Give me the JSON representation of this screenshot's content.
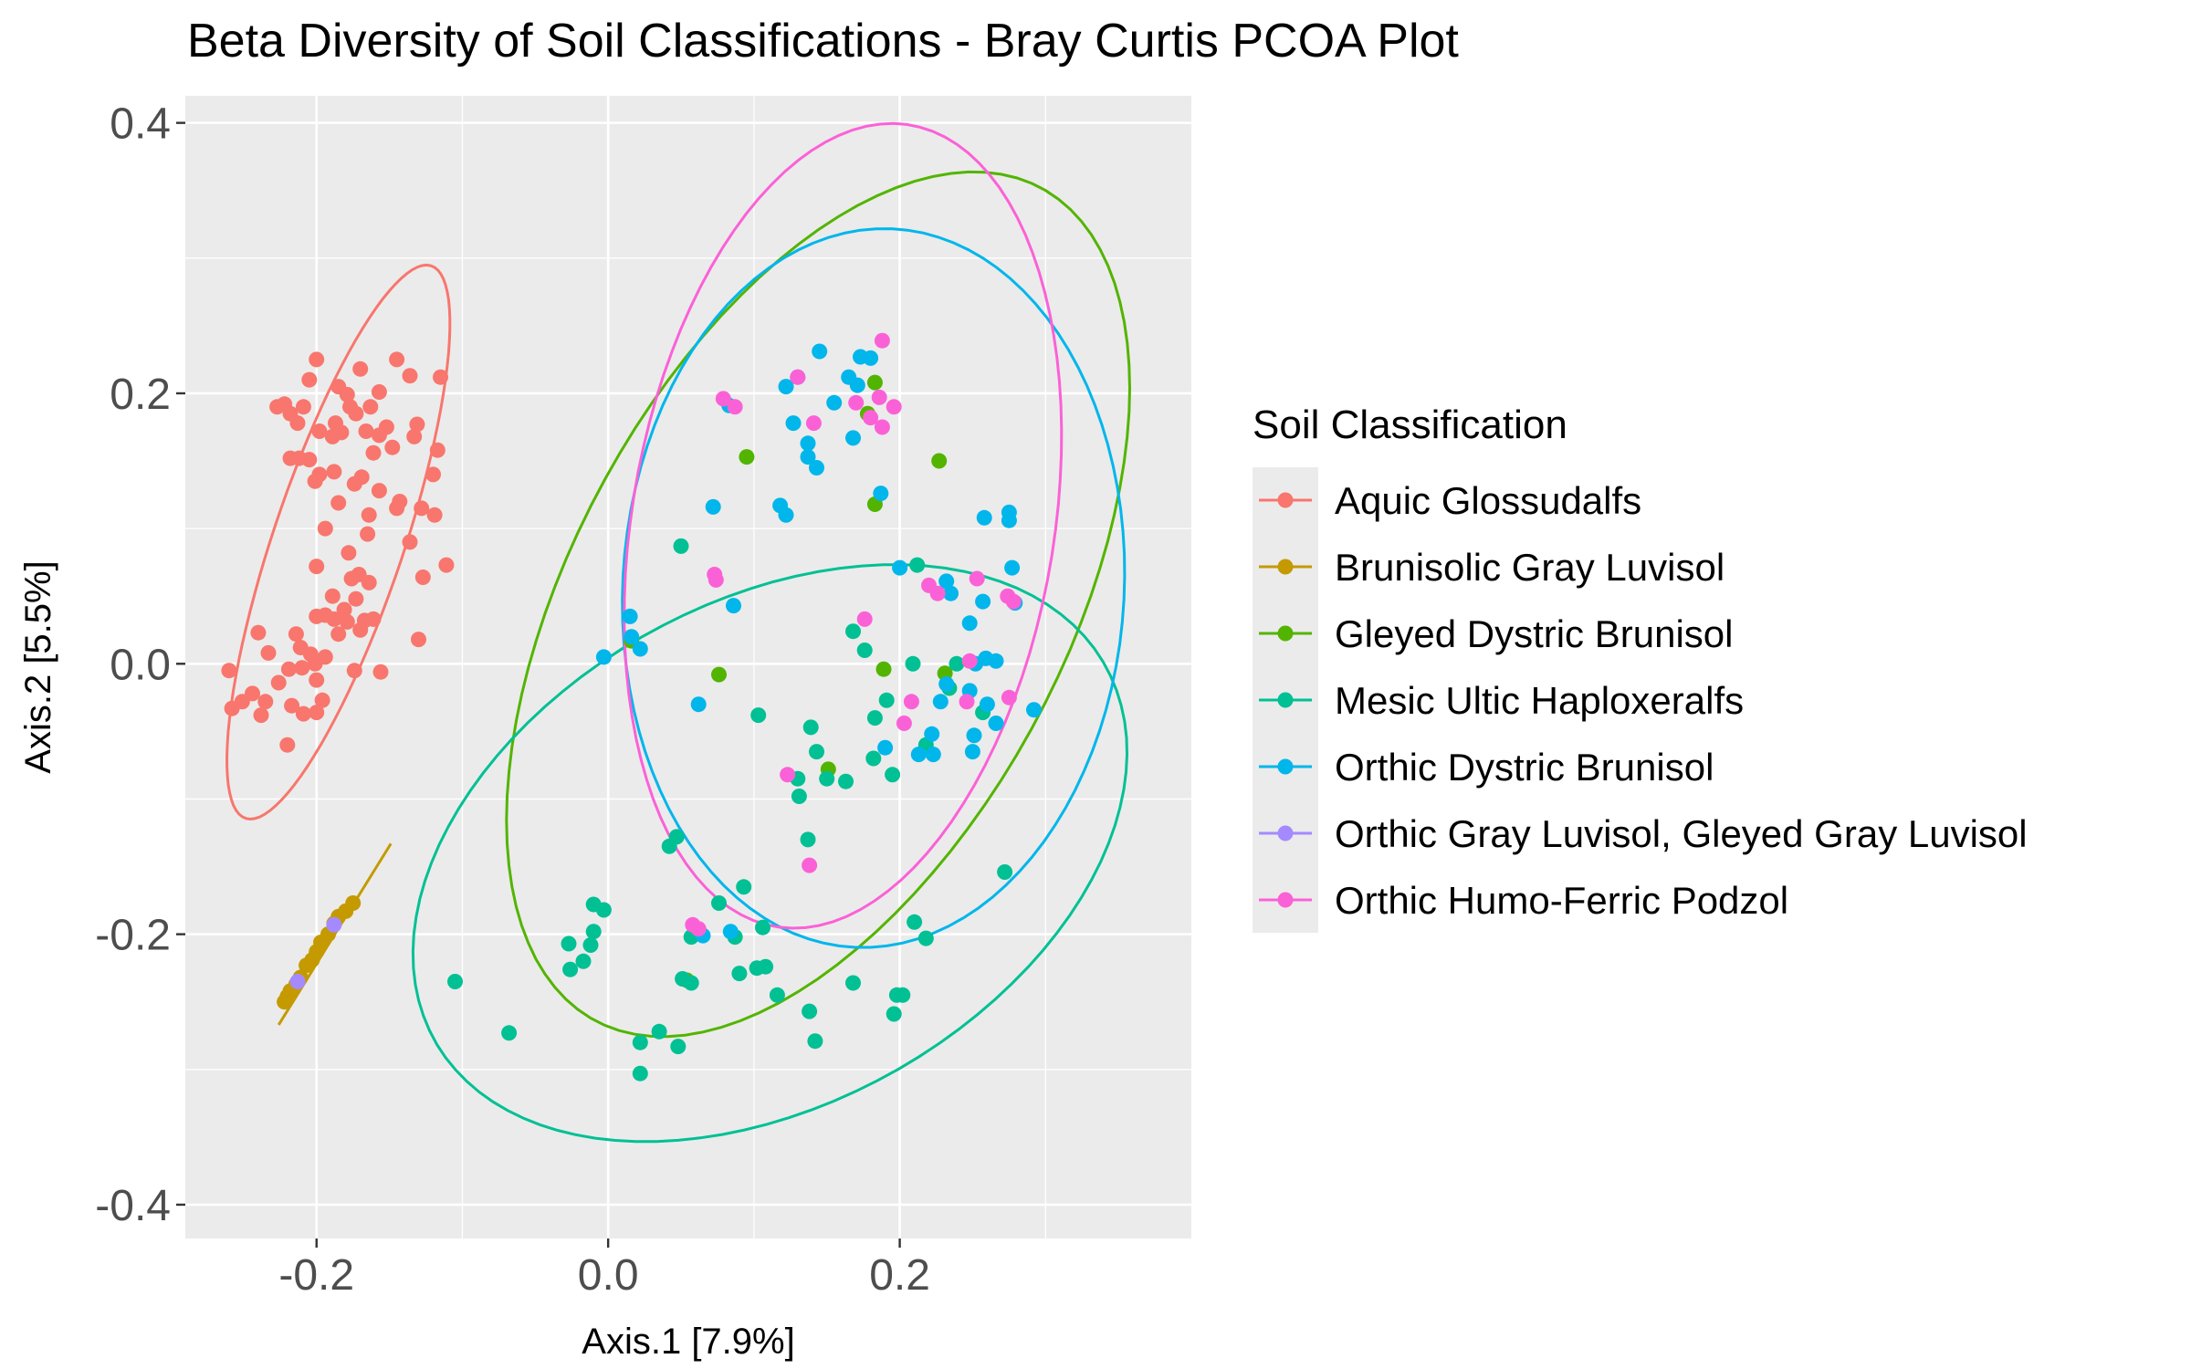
{
  "chart_data": {
    "type": "scatter",
    "title": "Beta Diversity of Soil Classifications - Bray Curtis PCOA Plot",
    "xlabel": "Axis.1   [7.9%]",
    "ylabel": "Axis.2   [5.5%]",
    "xlim": [
      -0.29,
      0.4
    ],
    "ylim": [
      -0.425,
      0.42
    ],
    "x_ticks": [
      {
        "value": -0.2,
        "label": "-0.2"
      },
      {
        "value": 0.0,
        "label": "0.0"
      },
      {
        "value": 0.2,
        "label": "0.2"
      }
    ],
    "y_ticks": [
      {
        "value": 0.4,
        "label": "0.4"
      },
      {
        "value": 0.2,
        "label": "0.2"
      },
      {
        "value": 0.0,
        "label": "0.0"
      },
      {
        "value": -0.2,
        "label": "-0.2"
      },
      {
        "value": -0.4,
        "label": "-0.4"
      }
    ],
    "grid": true,
    "ellipses": "95% confidence ellipse per group",
    "legend": {
      "title": "Soil Classification",
      "position": "right"
    },
    "series": [
      {
        "name": "Aquic Glossudalfs",
        "color": "#F8766D",
        "points": [
          [
            -0.2,
            0.225
          ],
          [
            -0.145,
            0.225
          ],
          [
            -0.17,
            0.218
          ],
          [
            -0.136,
            0.213
          ],
          [
            -0.115,
            0.212
          ],
          [
            -0.205,
            0.21
          ],
          [
            -0.185,
            0.205
          ],
          [
            -0.179,
            0.199
          ],
          [
            -0.157,
            0.201
          ],
          [
            -0.222,
            0.192
          ],
          [
            -0.227,
            0.19
          ],
          [
            -0.209,
            0.19
          ],
          [
            -0.177,
            0.19
          ],
          [
            -0.163,
            0.19
          ],
          [
            -0.173,
            0.185
          ],
          [
            -0.187,
            0.178
          ],
          [
            -0.213,
            0.178
          ],
          [
            -0.218,
            0.185
          ],
          [
            -0.131,
            0.177
          ],
          [
            -0.152,
            0.175
          ],
          [
            -0.166,
            0.172
          ],
          [
            -0.198,
            0.172
          ],
          [
            -0.183,
            0.171
          ],
          [
            -0.157,
            0.169
          ],
          [
            -0.189,
            0.168
          ],
          [
            -0.133,
            0.168
          ],
          [
            -0.148,
            0.16
          ],
          [
            -0.161,
            0.156
          ],
          [
            -0.117,
            0.158
          ],
          [
            -0.218,
            0.152
          ],
          [
            -0.212,
            0.152
          ],
          [
            -0.205,
            0.151
          ],
          [
            -0.198,
            0.14
          ],
          [
            -0.188,
            0.142
          ],
          [
            -0.169,
            0.138
          ],
          [
            -0.174,
            0.133
          ],
          [
            -0.201,
            0.135
          ],
          [
            -0.12,
            0.14
          ],
          [
            -0.157,
            0.128
          ],
          [
            -0.143,
            0.12
          ],
          [
            -0.185,
            0.119
          ],
          [
            -0.164,
            0.11
          ],
          [
            -0.128,
            0.115
          ],
          [
            -0.145,
            0.115
          ],
          [
            -0.194,
            0.1
          ],
          [
            -0.165,
            0.096
          ],
          [
            -0.119,
            0.11
          ],
          [
            -0.178,
            0.082
          ],
          [
            -0.136,
            0.09
          ],
          [
            -0.2,
            0.072
          ],
          [
            -0.171,
            0.066
          ],
          [
            -0.111,
            0.073
          ],
          [
            -0.176,
            0.063
          ],
          [
            -0.127,
            0.064
          ],
          [
            -0.164,
            0.06
          ],
          [
            -0.189,
            0.05
          ],
          [
            -0.173,
            0.048
          ],
          [
            -0.181,
            0.04
          ],
          [
            -0.2,
            0.035
          ],
          [
            -0.194,
            0.036
          ],
          [
            -0.179,
            0.031
          ],
          [
            -0.188,
            0.033
          ],
          [
            -0.167,
            0.032
          ],
          [
            -0.161,
            0.033
          ],
          [
            -0.24,
            0.023
          ],
          [
            -0.214,
            0.022
          ],
          [
            -0.185,
            0.022
          ],
          [
            -0.17,
            0.025
          ],
          [
            -0.13,
            0.018
          ],
          [
            -0.211,
            0.012
          ],
          [
            -0.233,
            0.008
          ],
          [
            -0.204,
            0.007
          ],
          [
            -0.194,
            0.005
          ],
          [
            -0.201,
            0.0
          ],
          [
            -0.21,
            -0.003
          ],
          [
            -0.219,
            -0.004
          ],
          [
            -0.26,
            -0.005
          ],
          [
            -0.156,
            -0.006
          ],
          [
            -0.174,
            -0.005
          ],
          [
            -0.2,
            -0.012
          ],
          [
            -0.226,
            -0.014
          ],
          [
            -0.244,
            -0.022
          ],
          [
            -0.251,
            -0.028
          ],
          [
            -0.258,
            -0.033
          ],
          [
            -0.235,
            -0.028
          ],
          [
            -0.217,
            -0.031
          ],
          [
            -0.209,
            -0.037
          ],
          [
            -0.2,
            -0.036
          ],
          [
            -0.238,
            -0.038
          ],
          [
            -0.196,
            -0.027
          ],
          [
            -0.22,
            -0.06
          ]
        ]
      },
      {
        "name": "Brunisolic Gray Luvisol",
        "color": "#C49A00",
        "points": [
          [
            -0.175,
            -0.177
          ],
          [
            -0.18,
            -0.183
          ],
          [
            -0.185,
            -0.187
          ],
          [
            -0.188,
            -0.192
          ],
          [
            -0.192,
            -0.2
          ],
          [
            -0.197,
            -0.206
          ],
          [
            -0.2,
            -0.213
          ],
          [
            -0.203,
            -0.219
          ],
          [
            -0.207,
            -0.223
          ],
          [
            -0.211,
            -0.232
          ],
          [
            -0.214,
            -0.237
          ],
          [
            -0.218,
            -0.242
          ],
          [
            -0.22,
            -0.246
          ],
          [
            -0.222,
            -0.25
          ]
        ]
      },
      {
        "name": "Gleyed Dystric Brunisol",
        "color": "#53B400",
        "points": [
          [
            0.183,
            0.208
          ],
          [
            0.095,
            0.153
          ],
          [
            0.227,
            0.15
          ],
          [
            0.183,
            0.118
          ],
          [
            0.178,
            0.185
          ],
          [
            0.016,
            0.017
          ],
          [
            0.076,
            -0.008
          ],
          [
            0.189,
            -0.004
          ],
          [
            0.231,
            -0.007
          ],
          [
            0.151,
            -0.078
          ],
          [
            0.054,
            -0.234
          ]
        ]
      },
      {
        "name": "Mesic Ultic Haploxeralfs",
        "color": "#00C094",
        "points": [
          [
            0.05,
            0.087
          ],
          [
            0.212,
            0.073
          ],
          [
            0.168,
            0.024
          ],
          [
            0.176,
            0.01
          ],
          [
            0.209,
            0.0
          ],
          [
            0.239,
            0.0
          ],
          [
            0.103,
            -0.038
          ],
          [
            0.191,
            -0.027
          ],
          [
            0.183,
            -0.04
          ],
          [
            0.234,
            -0.018
          ],
          [
            0.139,
            -0.047
          ],
          [
            0.257,
            -0.036
          ],
          [
            0.143,
            -0.065
          ],
          [
            0.218,
            -0.06
          ],
          [
            0.182,
            -0.07
          ],
          [
            0.13,
            -0.085
          ],
          [
            0.15,
            -0.085
          ],
          [
            0.163,
            -0.087
          ],
          [
            0.195,
            -0.082
          ],
          [
            0.131,
            -0.098
          ],
          [
            0.042,
            -0.135
          ],
          [
            0.047,
            -0.128
          ],
          [
            0.137,
            -0.13
          ],
          [
            0.272,
            -0.154
          ],
          [
            -0.01,
            -0.178
          ],
          [
            -0.003,
            -0.182
          ],
          [
            0.076,
            -0.177
          ],
          [
            0.093,
            -0.165
          ],
          [
            0.106,
            -0.195
          ],
          [
            0.21,
            -0.191
          ],
          [
            0.218,
            -0.203
          ],
          [
            -0.027,
            -0.207
          ],
          [
            -0.01,
            -0.198
          ],
          [
            0.057,
            -0.202
          ],
          [
            0.087,
            -0.202
          ],
          [
            -0.012,
            -0.208
          ],
          [
            -0.017,
            -0.22
          ],
          [
            -0.026,
            -0.226
          ],
          [
            0.051,
            -0.233
          ],
          [
            0.057,
            -0.236
          ],
          [
            0.09,
            -0.229
          ],
          [
            0.108,
            -0.224
          ],
          [
            0.102,
            -0.225
          ],
          [
            -0.105,
            -0.235
          ],
          [
            0.116,
            -0.245
          ],
          [
            0.168,
            -0.236
          ],
          [
            0.202,
            -0.245
          ],
          [
            0.198,
            -0.245
          ],
          [
            0.138,
            -0.257
          ],
          [
            0.196,
            -0.259
          ],
          [
            -0.068,
            -0.273
          ],
          [
            0.035,
            -0.272
          ],
          [
            0.022,
            -0.28
          ],
          [
            0.048,
            -0.283
          ],
          [
            0.142,
            -0.279
          ],
          [
            0.022,
            -0.303
          ]
        ]
      },
      {
        "name": "Orthic Dystric Brunisol",
        "color": "#00B6EB",
        "points": [
          [
            0.145,
            0.231
          ],
          [
            0.173,
            0.227
          ],
          [
            0.18,
            0.226
          ],
          [
            0.165,
            0.212
          ],
          [
            0.083,
            0.191
          ],
          [
            0.122,
            0.205
          ],
          [
            0.13,
            0.212
          ],
          [
            0.155,
            0.193
          ],
          [
            0.171,
            0.206
          ],
          [
            0.127,
            0.178
          ],
          [
            0.168,
            0.167
          ],
          [
            0.137,
            0.163
          ],
          [
            0.137,
            0.153
          ],
          [
            0.143,
            0.145
          ],
          [
            0.187,
            0.126
          ],
          [
            0.072,
            0.116
          ],
          [
            0.118,
            0.117
          ],
          [
            0.122,
            0.11
          ],
          [
            0.275,
            0.112
          ],
          [
            0.275,
            0.106
          ],
          [
            0.258,
            0.108
          ],
          [
            0.277,
            0.071
          ],
          [
            0.2,
            0.071
          ],
          [
            0.232,
            0.061
          ],
          [
            0.235,
            0.052
          ],
          [
            0.015,
            0.035
          ],
          [
            0.257,
            0.046
          ],
          [
            0.279,
            0.045
          ],
          [
            0.248,
            0.03
          ],
          [
            0.016,
            0.02
          ],
          [
            0.022,
            0.011
          ],
          [
            0.086,
            0.043
          ],
          [
            -0.003,
            0.005
          ],
          [
            0.259,
            0.004
          ],
          [
            0.266,
            0.002
          ],
          [
            0.252,
            0.0
          ],
          [
            0.248,
            -0.02
          ],
          [
            0.232,
            -0.015
          ],
          [
            0.228,
            -0.028
          ],
          [
            0.26,
            -0.03
          ],
          [
            0.062,
            -0.03
          ],
          [
            0.266,
            -0.044
          ],
          [
            0.292,
            -0.034
          ],
          [
            0.251,
            -0.053
          ],
          [
            0.222,
            -0.052
          ],
          [
            0.19,
            -0.062
          ],
          [
            0.213,
            -0.067
          ],
          [
            0.223,
            -0.067
          ],
          [
            0.25,
            -0.065
          ],
          [
            0.065,
            -0.201
          ],
          [
            0.084,
            -0.198
          ]
        ]
      },
      {
        "name": "Orthic Gray Luvisol, Gleyed Gray Luvisol",
        "color": "#A58AFF",
        "points": [
          [
            -0.188,
            -0.193
          ],
          [
            -0.213,
            -0.235
          ]
        ]
      },
      {
        "name": "Orthic Humo-Ferric Podzol",
        "color": "#FB61D7",
        "points": [
          [
            0.188,
            0.239
          ],
          [
            0.13,
            0.212
          ],
          [
            0.079,
            0.196
          ],
          [
            0.087,
            0.19
          ],
          [
            0.17,
            0.193
          ],
          [
            0.186,
            0.197
          ],
          [
            0.196,
            0.19
          ],
          [
            0.141,
            0.178
          ],
          [
            0.18,
            0.182
          ],
          [
            0.188,
            0.175
          ],
          [
            0.253,
            0.063
          ],
          [
            0.274,
            0.05
          ],
          [
            0.22,
            0.058
          ],
          [
            0.226,
            0.052
          ],
          [
            0.278,
            0.046
          ],
          [
            0.074,
            0.062
          ],
          [
            0.073,
            0.066
          ],
          [
            0.176,
            0.033
          ],
          [
            0.248,
            0.002
          ],
          [
            0.208,
            -0.028
          ],
          [
            0.275,
            -0.025
          ],
          [
            0.246,
            -0.028
          ],
          [
            0.203,
            -0.044
          ],
          [
            0.123,
            -0.082
          ],
          [
            0.138,
            -0.149
          ],
          [
            0.062,
            -0.196
          ],
          [
            0.058,
            -0.193
          ]
        ]
      }
    ],
    "ellipse_params": [
      {
        "series": "Aquic Glossudalfs",
        "cx": -0.185,
        "cy": 0.09,
        "a": 0.214,
        "b": 0.045,
        "angle": 72.8
      },
      {
        "series": "Brunisolic Gray Luvisol",
        "line": [
          [
            -0.149,
            -0.133
          ],
          [
            -0.226,
            -0.267
          ]
        ]
      },
      {
        "series": "Gleyed Dystric Brunisol",
        "cx": 0.144,
        "cy": 0.044,
        "a": 0.344,
        "b": 0.172,
        "angle": 64.8
      },
      {
        "series": "Mesic Ultic Haploxeralfs",
        "cx": 0.111,
        "cy": -0.14,
        "a": 0.269,
        "b": 0.182,
        "angle": 34.2
      },
      {
        "series": "Orthic Dystric Brunisol",
        "cx": 0.182,
        "cy": 0.056,
        "a": 0.266,
        "b": 0.172,
        "angle": 87.3
      },
      {
        "series": "Orthic Humo-Ferric Podzol",
        "cx": 0.161,
        "cy": 0.102,
        "a": 0.3,
        "b": 0.145,
        "angle": 81.6
      }
    ]
  }
}
